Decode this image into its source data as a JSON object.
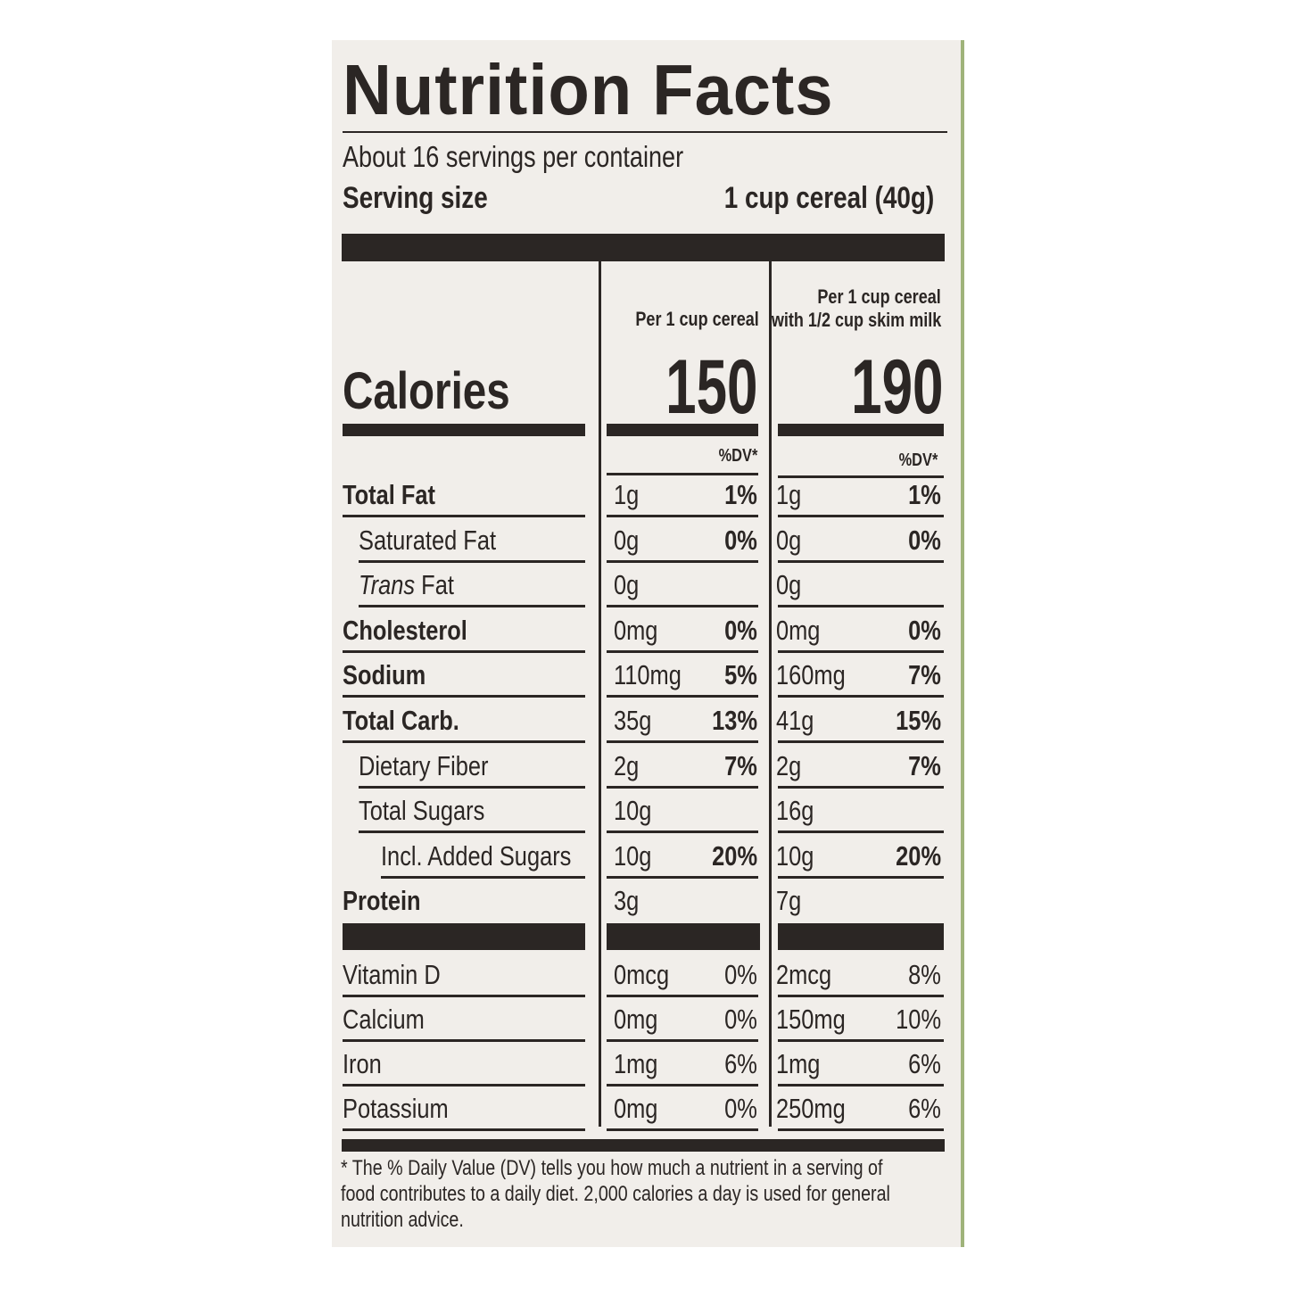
{
  "title": "Nutrition Facts",
  "servings_per_container": "About 16 servings per container",
  "serving_size_label": "Serving size",
  "serving_size_value": "1 cup cereal (40g)",
  "columns": [
    {
      "header": "Per 1 cup cereal",
      "header_line2": "",
      "calories": "150",
      "dv_header": "%DV*"
    },
    {
      "header": "Per 1 cup cereal",
      "header_line2": "with 1/2 cup skim milk",
      "calories": "190",
      "dv_header": "%DV*"
    }
  ],
  "calories_label": "Calories",
  "nutrients": [
    {
      "name": "Total Fat",
      "bold": true,
      "indent": 0,
      "c1": "1g",
      "d1": "1%",
      "c2": "1g",
      "d2": "1%"
    },
    {
      "name": "Saturated Fat",
      "bold": false,
      "indent": 1,
      "c1": "0g",
      "d1": "0%",
      "c2": "0g",
      "d2": "0%"
    },
    {
      "name": "Trans Fat",
      "bold": false,
      "indent": 1,
      "italic_prefix": "Trans",
      "c1": "0g",
      "d1": "",
      "c2": "0g",
      "d2": ""
    },
    {
      "name": "Cholesterol",
      "bold": true,
      "indent": 0,
      "c1": "0mg",
      "d1": "0%",
      "c2": "0mg",
      "d2": "0%"
    },
    {
      "name": "Sodium",
      "bold": true,
      "indent": 0,
      "c1": "110mg",
      "d1": "5%",
      "c2": "160mg",
      "d2": "7%"
    },
    {
      "name": "Total Carb.",
      "bold": true,
      "indent": 0,
      "c1": "35g",
      "d1": "13%",
      "c2": "41g",
      "d2": "15%"
    },
    {
      "name": "Dietary Fiber",
      "bold": false,
      "indent": 1,
      "c1": "2g",
      "d1": "7%",
      "c2": "2g",
      "d2": "7%"
    },
    {
      "name": "Total Sugars",
      "bold": false,
      "indent": 1,
      "c1": "10g",
      "d1": "",
      "c2": "16g",
      "d2": ""
    },
    {
      "name": "Incl. Added Sugars",
      "bold": false,
      "indent": 2,
      "c1": "10g",
      "d1": "20%",
      "c2": "10g",
      "d2": "20%"
    },
    {
      "name": "Protein",
      "bold": true,
      "indent": 0,
      "c1": "3g",
      "d1": "",
      "c2": "7g",
      "d2": ""
    }
  ],
  "vitamins": [
    {
      "name": "Vitamin D",
      "c1": "0mcg",
      "d1": "0%",
      "c2": "2mcg",
      "d2": "8%"
    },
    {
      "name": "Calcium",
      "c1": "0mg",
      "d1": "0%",
      "c2": "150mg",
      "d2": "10%"
    },
    {
      "name": "Iron",
      "c1": "1mg",
      "d1": "6%",
      "c2": "1mg",
      "d2": "6%"
    },
    {
      "name": "Potassium",
      "c1": "0mg",
      "d1": "0%",
      "c2": "250mg",
      "d2": "6%"
    }
  ],
  "footnote": "* The % Daily Value (DV) tells you how much a nutrient in a serving of food contributes to a daily diet. 2,000 calories a day is used for general nutrition advice."
}
